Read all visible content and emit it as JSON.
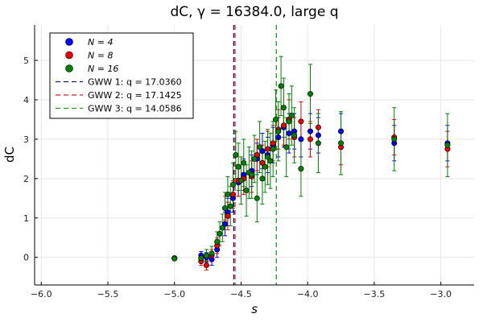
{
  "chart_data": {
    "type": "scatter",
    "title": "dC, γ = 16384.0,  large q",
    "xlabel": "s",
    "ylabel": "dC",
    "xlim": [
      -6.05,
      -2.75
    ],
    "ylim": [
      -0.7,
      5.9
    ],
    "xticks": [
      -6.0,
      -5.5,
      -5.0,
      -4.5,
      -4.0,
      -3.5,
      -3.0
    ],
    "xtick_labels": [
      "−6.0",
      "−5.5",
      "−5.0",
      "−4.5",
      "−4.0",
      "−3.5",
      "−3.0"
    ],
    "yticks": [
      0,
      1,
      2,
      3,
      4,
      5
    ],
    "ytick_labels": [
      "0",
      "1",
      "2",
      "3",
      "4",
      "5"
    ],
    "grid": true,
    "legend_position": "top-left",
    "colors": {
      "n4": "#0000ff",
      "n8": "#ee0000",
      "n16": "#008000",
      "gww1": "#1a1a80",
      "gww2": "#dd2222",
      "gww3": "#229922"
    },
    "series": [
      {
        "name": "N = 4",
        "color": "#0000ff",
        "points": [
          [
            -5.0,
            -0.02,
            0.05
          ],
          [
            -4.8,
            0.05,
            0.1
          ],
          [
            -4.76,
            0.0,
            0.12
          ],
          [
            -4.72,
            -0.05,
            0.15
          ],
          [
            -4.68,
            0.2,
            0.2
          ],
          [
            -4.62,
            0.85,
            0.3
          ],
          [
            -4.6,
            1.15,
            0.35
          ],
          [
            -4.56,
            1.5,
            0.35
          ],
          [
            -4.52,
            1.9,
            0.35
          ],
          [
            -4.48,
            2.1,
            0.4
          ],
          [
            -4.42,
            2.2,
            0.4
          ],
          [
            -4.38,
            2.5,
            0.4
          ],
          [
            -4.34,
            2.7,
            0.45
          ],
          [
            -4.3,
            2.6,
            0.45
          ],
          [
            -4.26,
            2.85,
            0.45
          ],
          [
            -4.22,
            3.05,
            0.5
          ],
          [
            -4.18,
            3.3,
            0.5
          ],
          [
            -4.14,
            3.15,
            0.5
          ],
          [
            -4.1,
            3.2,
            0.45
          ],
          [
            -4.05,
            3.0,
            0.45
          ],
          [
            -3.98,
            3.2,
            0.45
          ],
          [
            -3.92,
            3.1,
            0.45
          ],
          [
            -3.75,
            3.2,
            0.45
          ],
          [
            -3.35,
            2.9,
            0.45
          ],
          [
            -2.95,
            2.9,
            0.45
          ]
        ]
      },
      {
        "name": "N = 8",
        "color": "#ee0000",
        "points": [
          [
            -5.0,
            -0.02,
            0.05
          ],
          [
            -4.8,
            -0.1,
            0.1
          ],
          [
            -4.76,
            -0.2,
            0.12
          ],
          [
            -4.72,
            0.05,
            0.15
          ],
          [
            -4.68,
            0.3,
            0.2
          ],
          [
            -4.62,
            1.25,
            0.3
          ],
          [
            -4.6,
            1.05,
            0.35
          ],
          [
            -4.56,
            1.6,
            0.35
          ],
          [
            -4.52,
            1.95,
            0.4
          ],
          [
            -4.48,
            2.0,
            0.4
          ],
          [
            -4.42,
            2.05,
            0.4
          ],
          [
            -4.38,
            2.6,
            0.4
          ],
          [
            -4.34,
            2.4,
            0.45
          ],
          [
            -4.3,
            2.75,
            0.45
          ],
          [
            -4.26,
            2.9,
            0.45
          ],
          [
            -4.22,
            3.25,
            0.5
          ],
          [
            -4.18,
            3.35,
            0.5
          ],
          [
            -4.14,
            3.5,
            0.5
          ],
          [
            -4.1,
            3.05,
            0.5
          ],
          [
            -4.05,
            3.45,
            0.5
          ],
          [
            -3.98,
            3.0,
            0.45
          ],
          [
            -3.92,
            3.3,
            0.45
          ],
          [
            -3.75,
            2.8,
            0.45
          ],
          [
            -3.35,
            3.05,
            0.45
          ],
          [
            -2.95,
            2.75,
            0.45
          ]
        ]
      },
      {
        "name": "N = 16",
        "color": "#008000",
        "points": [
          [
            -5.0,
            -0.03,
            0.05
          ],
          [
            -4.8,
            -0.02,
            0.1
          ],
          [
            -4.76,
            0.05,
            0.15
          ],
          [
            -4.72,
            0.1,
            0.18
          ],
          [
            -4.68,
            0.4,
            0.25
          ],
          [
            -4.66,
            0.6,
            0.3
          ],
          [
            -4.64,
            0.75,
            0.35
          ],
          [
            -4.62,
            1.25,
            0.4
          ],
          [
            -4.6,
            1.6,
            0.45
          ],
          [
            -4.58,
            1.3,
            0.5
          ],
          [
            -4.56,
            1.85,
            0.55
          ],
          [
            -4.54,
            2.6,
            0.6
          ],
          [
            -4.52,
            2.3,
            0.6
          ],
          [
            -4.5,
            1.95,
            0.6
          ],
          [
            -4.48,
            2.4,
            0.6
          ],
          [
            -4.46,
            1.7,
            0.65
          ],
          [
            -4.44,
            2.15,
            0.65
          ],
          [
            -4.42,
            2.1,
            0.6
          ],
          [
            -4.4,
            2.5,
            0.6
          ],
          [
            -4.38,
            1.5,
            0.6
          ],
          [
            -4.36,
            2.8,
            0.65
          ],
          [
            -4.34,
            2.0,
            0.65
          ],
          [
            -4.32,
            2.3,
            0.65
          ],
          [
            -4.3,
            2.55,
            0.7
          ],
          [
            -4.28,
            2.45,
            0.7
          ],
          [
            -4.26,
            2.75,
            0.7
          ],
          [
            -4.24,
            3.5,
            0.75
          ],
          [
            -4.22,
            3.2,
            0.75
          ],
          [
            -4.2,
            4.35,
            0.75
          ],
          [
            -4.18,
            3.8,
            0.75
          ],
          [
            -4.16,
            2.8,
            0.75
          ],
          [
            -4.14,
            3.45,
            0.7
          ],
          [
            -4.12,
            3.6,
            0.75
          ],
          [
            -4.1,
            3.1,
            0.7
          ],
          [
            -4.05,
            2.25,
            0.7
          ],
          [
            -3.98,
            4.15,
            0.75
          ],
          [
            -3.92,
            2.9,
            0.75
          ],
          [
            -3.75,
            2.9,
            0.8
          ],
          [
            -3.35,
            3.0,
            0.8
          ],
          [
            -2.95,
            2.85,
            0.8
          ]
        ]
      }
    ],
    "vlines": [
      {
        "name": "GWW 1: q = 17.0360",
        "x": -4.555,
        "color": "#1a1a80"
      },
      {
        "name": "GWW 2: q = 17.1425",
        "x": -4.545,
        "color": "#dd2222"
      },
      {
        "name": "GWW 3: q = 14.0586",
        "x": -4.235,
        "color": "#229922"
      }
    ],
    "legend_entries": [
      {
        "kind": "marker",
        "label": "N = 4",
        "color": "#0000ff"
      },
      {
        "kind": "marker",
        "label": "N = 8",
        "color": "#ee0000"
      },
      {
        "kind": "marker",
        "label": "N = 16",
        "color": "#008000"
      },
      {
        "kind": "line",
        "label": "GWW 1: q = 17.0360",
        "color": "#1a1a80"
      },
      {
        "kind": "line",
        "label": "GWW 2: q = 17.1425",
        "color": "#dd2222"
      },
      {
        "kind": "line",
        "label": "GWW 3: q = 14.0586",
        "color": "#229922"
      }
    ]
  }
}
